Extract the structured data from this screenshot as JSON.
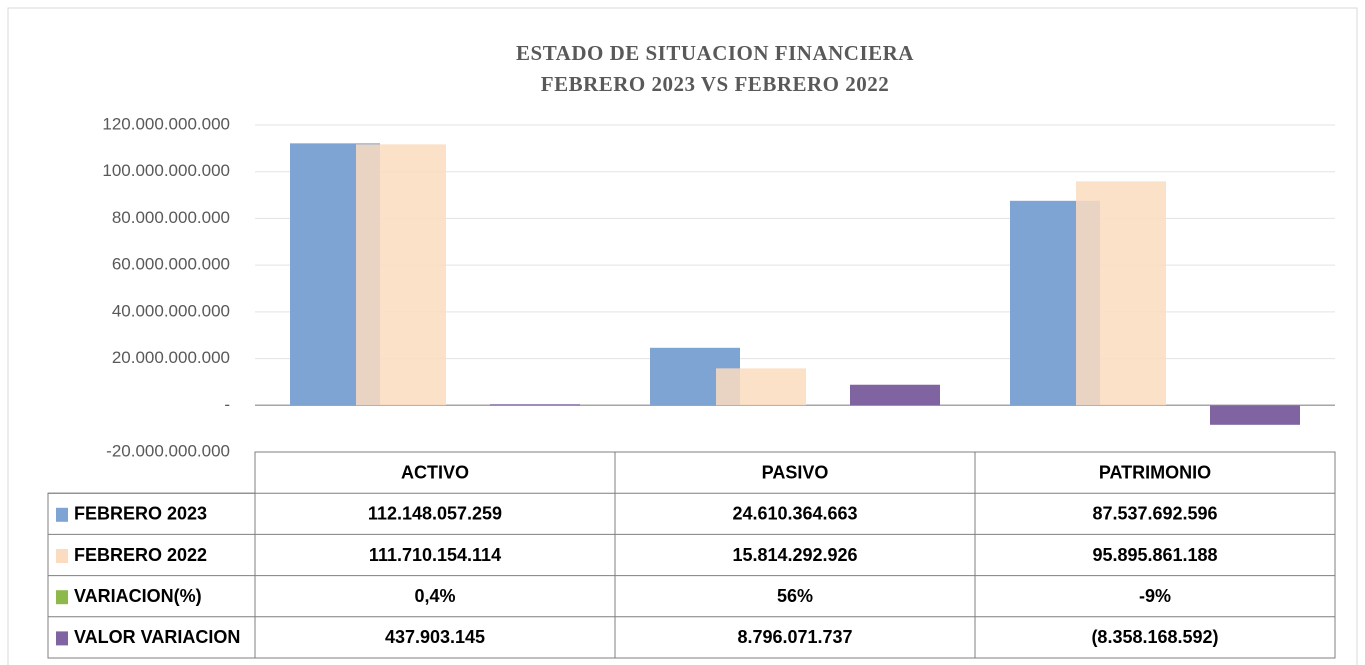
{
  "chart_data": {
    "type": "bar",
    "title": "ESTADO DE SITUACION FINANCIERA",
    "subtitle": "FEBRERO 2023 VS FEBRERO 2022",
    "categories": [
      "ACTIVO",
      "PASIVO",
      "PATRIMONIO"
    ],
    "series": [
      {
        "name": "FEBRERO 2023",
        "color": "#7ea4d3",
        "values": [
          112148057259,
          24610364663,
          87537692596
        ],
        "value_labels": [
          "112.148.057.259",
          "24.610.364.663",
          "87.537.692.596"
        ]
      },
      {
        "name": "FEBRERO 2022",
        "color": "#fbdcc0",
        "values": [
          111710154114,
          15814292926,
          95895861188
        ],
        "value_labels": [
          "111.710.154.114",
          "15.814.292.926",
          "95.895.861.188"
        ]
      },
      {
        "name": "VARIACION(%)",
        "color": "#8db84a",
        "values": [
          0.4,
          56,
          -9
        ],
        "value_labels": [
          "0,4%",
          "56%",
          "-9%"
        ]
      },
      {
        "name": "VALOR VARIACION",
        "color": "#8064a2",
        "values": [
          437903145,
          8796071737,
          -8358168592
        ],
        "value_labels": [
          "437.903.145",
          "8.796.071.737",
          "(8.358.168.592)"
        ]
      }
    ],
    "ylim": [
      -20000000000,
      120000000000
    ],
    "yticks": [
      {
        "value": -20000000000,
        "label": "-20.000.000.000"
      },
      {
        "value": 0,
        "label": "-"
      },
      {
        "value": 20000000000,
        "label": "20.000.000.000"
      },
      {
        "value": 40000000000,
        "label": "40.000.000.000"
      },
      {
        "value": 60000000000,
        "label": "60.000.000.000"
      },
      {
        "value": 80000000000,
        "label": "80.000.000.000"
      },
      {
        "value": 100000000000,
        "label": "100.000.000.000"
      },
      {
        "value": 120000000000,
        "label": "120.000.000.000"
      }
    ],
    "grid": true
  }
}
